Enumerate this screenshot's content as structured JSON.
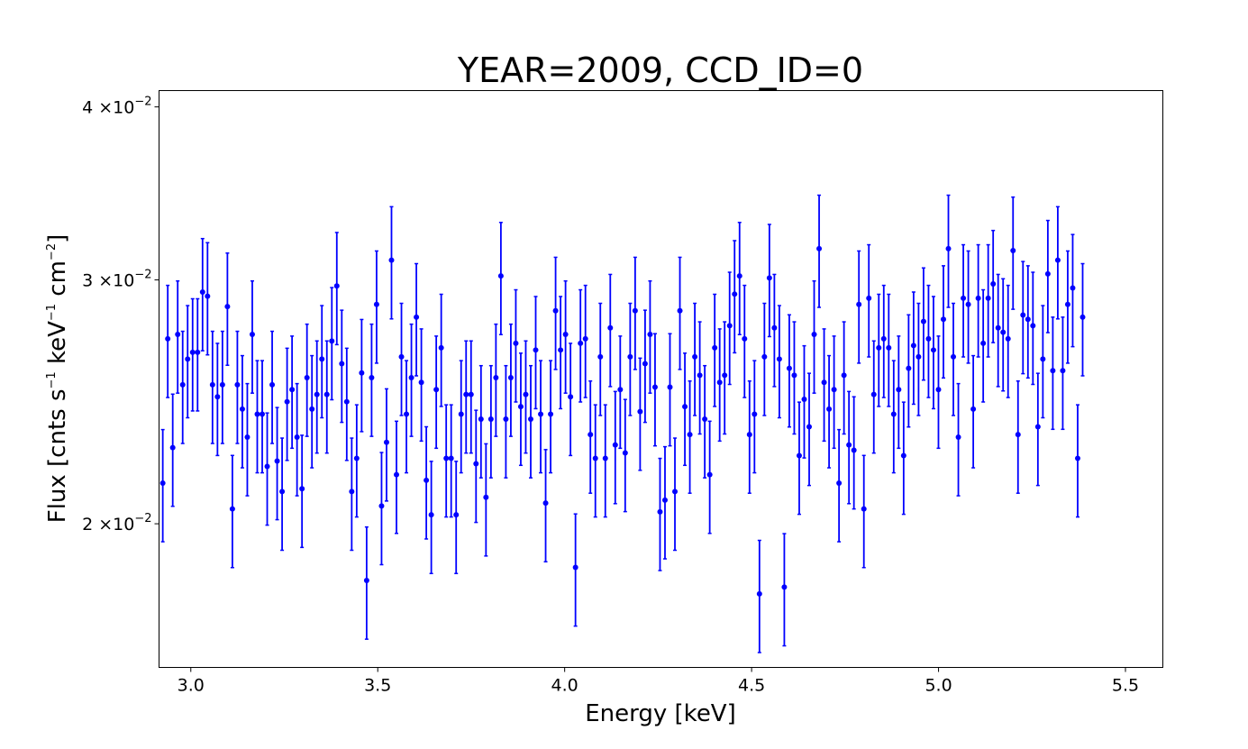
{
  "chart_data": {
    "type": "scatter",
    "title": "YEAR=2009, CCD_ID=0",
    "xlabel": "Energy [keV]",
    "ylabel": {
      "prefix": "Flux [cnts s",
      "sup1": "−1",
      "mid1": " keV",
      "sup2": "−1",
      "mid2": " cm",
      "sup3": "−2",
      "suffix": "]"
    },
    "x_scale": "linear",
    "y_scale": "log",
    "xlim": [
      2.915,
      5.6
    ],
    "ylim": [
      0.01575,
      0.0411
    ],
    "x_ticks": [
      {
        "value": 3.0,
        "label": "3.0"
      },
      {
        "value": 3.5,
        "label": "3.5"
      },
      {
        "value": 4.0,
        "label": "4.0"
      },
      {
        "value": 4.5,
        "label": "4.5"
      },
      {
        "value": 5.0,
        "label": "5.0"
      },
      {
        "value": 5.5,
        "label": "5.5"
      }
    ],
    "y_ticks": [
      {
        "value": 0.02,
        "mantissa": "2",
        "times": "×10",
        "exponent": "−2"
      },
      {
        "value": 0.03,
        "mantissa": "3",
        "times": "×10",
        "exponent": "−2"
      },
      {
        "value": 0.04,
        "mantissa": "4",
        "times": "×10",
        "exponent": "−2"
      }
    ],
    "series_color": "#0000ff",
    "error_frac": 0.093,
    "x_start": 2.925,
    "x_step": 0.0133,
    "y": [
      0.0214,
      0.0272,
      0.0227,
      0.0274,
      0.0252,
      0.0263,
      0.0266,
      0.0266,
      0.0294,
      0.0292,
      0.0252,
      0.0247,
      0.0252,
      0.0287,
      0.0205,
      0.0252,
      0.0242,
      0.0231,
      0.0274,
      0.024,
      0.024,
      0.022,
      0.0252,
      0.0222,
      0.0211,
      0.0245,
      0.025,
      0.0231,
      0.0212,
      0.0255,
      0.0242,
      0.0248,
      0.0263,
      0.0248,
      0.0271,
      0.0297,
      0.0261,
      0.0245,
      0.0211,
      0.0223,
      0.0257,
      0.0182,
      0.0255,
      0.0288,
      0.0206,
      0.0229,
      0.031,
      0.0217,
      0.0264,
      0.024,
      0.0255,
      0.0282,
      0.0253,
      0.0215,
      0.0203,
      0.025,
      0.0268,
      0.0223,
      0.0223,
      0.0203,
      0.024,
      0.0248,
      0.0248,
      0.0221,
      0.0238,
      0.0209,
      0.0238,
      0.0255,
      0.0302,
      0.0238,
      0.0255,
      0.027,
      0.0243,
      0.0248,
      0.0238,
      0.0267,
      0.024,
      0.0207,
      0.024,
      0.0285,
      0.0267,
      0.0274,
      0.0247,
      0.0186,
      0.027,
      0.0272,
      0.0232,
      0.0223,
      0.0264,
      0.0223,
      0.0277,
      0.0228,
      0.025,
      0.0225,
      0.0264,
      0.0285,
      0.0241,
      0.0261,
      0.0274,
      0.0251,
      0.0204,
      0.0208,
      0.0251,
      0.0211,
      0.0285,
      0.0243,
      0.0232,
      0.0264,
      0.0256,
      0.0238,
      0.0217,
      0.0268,
      0.0253,
      0.0256,
      0.0278,
      0.0293,
      0.0302,
      0.0272,
      0.0232,
      0.024,
      0.0178,
      0.0264,
      0.0301,
      0.0277,
      0.0263,
      0.018,
      0.0259,
      0.0256,
      0.0224,
      0.0246,
      0.0235,
      0.0274,
      0.0316,
      0.0253,
      0.0242,
      0.025,
      0.0214,
      0.0256,
      0.0228,
      0.0226,
      0.0288,
      0.0205,
      0.0291,
      0.0248,
      0.0268,
      0.0272,
      0.0268,
      0.024,
      0.025,
      0.0224,
      0.0259,
      0.0269,
      0.0264,
      0.028,
      0.0272,
      0.0267,
      0.025,
      0.0281,
      0.0316,
      0.0264,
      0.0231,
      0.0291,
      0.0288,
      0.0242,
      0.0291,
      0.027,
      0.0291,
      0.0298,
      0.0277,
      0.0275,
      0.0272,
      0.0315,
      0.0232,
      0.0283,
      0.0281,
      0.0278,
      0.0235,
      0.0263,
      0.0303,
      0.0258,
      0.031,
      0.0258,
      0.0288,
      0.0296,
      0.0223,
      0.0282
    ]
  }
}
